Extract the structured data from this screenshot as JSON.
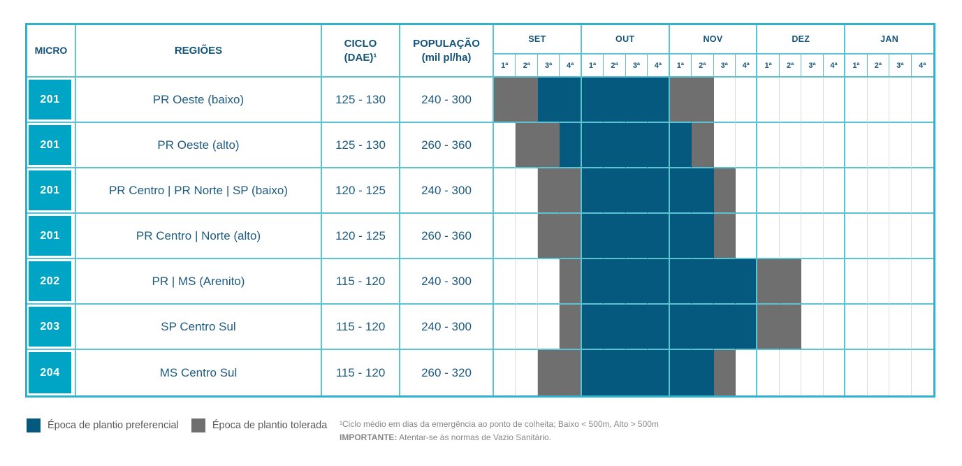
{
  "chart_data": {
    "type": "table",
    "description": "Calendário de época de plantio por microrregião (semanas 1ª-4ª de SET a JAN). P = época de plantio preferencial, T = época de plantio tolerada, vazio = sem plantio.",
    "headers": {
      "micro": "MICRO",
      "regioes": "REGIÕES",
      "ciclo": "CICLO\n(DAE)¹",
      "populacao": "POPULAÇÃO\n(mil pl/ha)",
      "months": [
        "SET",
        "OUT",
        "NOV",
        "DEZ",
        "JAN"
      ],
      "weeks": [
        "1ª",
        "2ª",
        "3ª",
        "4ª"
      ]
    },
    "cell_states": {
      "P": "Época de plantio preferencial",
      "T": "Época de plantio tolerada",
      "": "sem plantio"
    },
    "rows": [
      {
        "micro": "201",
        "regiao": "PR Oeste (baixo)",
        "ciclo": "125 - 130",
        "populacao": "240 - 300",
        "cells": [
          "T",
          "T",
          "P",
          "P",
          "P",
          "P",
          "P",
          "P",
          "T",
          "T",
          "",
          "",
          "",
          "",
          "",
          "",
          "",
          "",
          "",
          ""
        ]
      },
      {
        "micro": "201",
        "regiao": "PR Oeste (alto)",
        "ciclo": "125 - 130",
        "populacao": "260 - 360",
        "cells": [
          "",
          "T",
          "T",
          "P",
          "P",
          "P",
          "P",
          "P",
          "P",
          "T",
          "",
          "",
          "",
          "",
          "",
          "",
          "",
          "",
          "",
          ""
        ]
      },
      {
        "micro": "201",
        "regiao": "PR Centro | PR Norte | SP (baixo)",
        "ciclo": "120 - 125",
        "populacao": "240 - 300",
        "cells": [
          "",
          "",
          "T",
          "T",
          "P",
          "P",
          "P",
          "P",
          "P",
          "P",
          "T",
          "",
          "",
          "",
          "",
          "",
          "",
          "",
          "",
          ""
        ]
      },
      {
        "micro": "201",
        "regiao": "PR Centro | Norte (alto)",
        "ciclo": "120 - 125",
        "populacao": "260 - 360",
        "cells": [
          "",
          "",
          "T",
          "T",
          "P",
          "P",
          "P",
          "P",
          "P",
          "P",
          "T",
          "",
          "",
          "",
          "",
          "",
          "",
          "",
          "",
          ""
        ]
      },
      {
        "micro": "202",
        "regiao": "PR | MS (Arenito)",
        "ciclo": "115 - 120",
        "populacao": "240 - 300",
        "cells": [
          "",
          "",
          "",
          "T",
          "P",
          "P",
          "P",
          "P",
          "P",
          "P",
          "P",
          "P",
          "T",
          "T",
          "",
          "",
          "",
          "",
          "",
          ""
        ]
      },
      {
        "micro": "203",
        "regiao": "SP Centro Sul",
        "ciclo": "115 - 120",
        "populacao": "240 - 300",
        "cells": [
          "",
          "",
          "",
          "T",
          "P",
          "P",
          "P",
          "P",
          "P",
          "P",
          "P",
          "P",
          "T",
          "T",
          "",
          "",
          "",
          "",
          "",
          ""
        ]
      },
      {
        "micro": "204",
        "regiao": "MS Centro Sul",
        "ciclo": "115 - 120",
        "populacao": "260 - 320",
        "cells": [
          "",
          "",
          "T",
          "T",
          "P",
          "P",
          "P",
          "P",
          "P",
          "P",
          "T",
          "",
          "",
          "",
          "",
          "",
          "",
          "",
          "",
          ""
        ]
      }
    ]
  },
  "legend": {
    "items": [
      {
        "key": "P",
        "color": "#05587E",
        "label": "Época de plantio preferencial"
      },
      {
        "key": "T",
        "color": "#6F6F6F",
        "label": "Época de plantio tolerada"
      }
    ]
  },
  "footnotes": {
    "line1": "¹Ciclo médio em dias da emergência ao ponto de colheita; Baixo < 500m, Alto > 500m",
    "line2_label": "IMPORTANTE:",
    "line2_text": "Atentar-se às normas de Vazio Sanitário."
  },
  "colors": {
    "preferencial": "#05587E",
    "tolerada": "#6F6F6F",
    "micro_badge": "#00A5C6",
    "border_teal": "#5CC3D5",
    "border_outer": "#2FB3CC",
    "grid_light": "#DDDDDD",
    "header_text": "#14537A",
    "body_text": "#1D5B80",
    "legend_text": "#58595B",
    "footnote_text": "#85878A"
  }
}
